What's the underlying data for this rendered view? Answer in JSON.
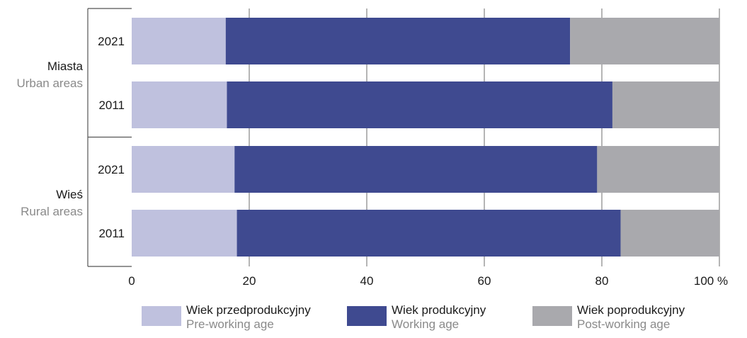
{
  "chart_data": {
    "type": "bar",
    "orientation": "horizontal",
    "stacked": true,
    "groups": [
      {
        "name": "Miasta",
        "name_en": "Urban areas",
        "rows": [
          "2021",
          "2011"
        ]
      },
      {
        "name": "Wieś",
        "name_en": "Rural areas",
        "rows": [
          "2021",
          "2011"
        ]
      }
    ],
    "categories": [
      "Miasta 2021",
      "Miasta 2011",
      "Wieś 2021",
      "Wieś 2011"
    ],
    "series": [
      {
        "name": "Wiek przedprodukcyjny",
        "name_en": "Pre-working age",
        "color": "#bfc1de",
        "values": [
          16.0,
          16.2,
          17.5,
          17.9
        ]
      },
      {
        "name": "Wiek produkcyjny",
        "name_en": "Working age",
        "color": "#3f4a90",
        "values": [
          58.6,
          65.6,
          61.7,
          65.3
        ]
      },
      {
        "name": "Wiek poprodukcyjny",
        "name_en": "Post-working age",
        "color": "#a9a9ad",
        "values": [
          25.4,
          18.2,
          20.8,
          16.8
        ]
      }
    ],
    "xlim": [
      0,
      100
    ],
    "xticks": [
      "0",
      "20",
      "40",
      "60",
      "80",
      "100 %"
    ],
    "xtick_values": [
      0,
      20,
      40,
      60,
      80,
      100
    ],
    "grid": true,
    "legend_position": "bottom"
  }
}
